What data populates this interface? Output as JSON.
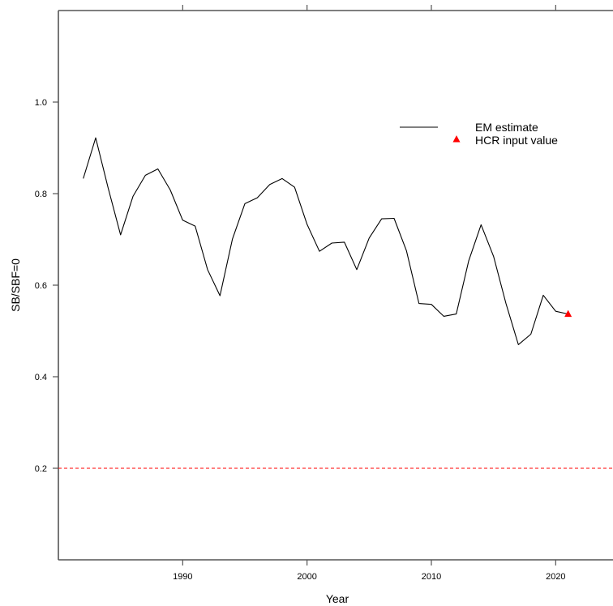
{
  "chart_data": {
    "type": "line",
    "xlabel": "Year",
    "ylabel": "SB/SBF=0",
    "xlim": [
      1980,
      2025
    ],
    "ylim": [
      0,
      1.2
    ],
    "x_ticks": [
      1990,
      2000,
      2010,
      2020
    ],
    "x_tick_labels": [
      "1990",
      "2000",
      "2010",
      "2020"
    ],
    "y_ticks": [
      0.2,
      0.4,
      0.6,
      0.8,
      1.0
    ],
    "y_tick_labels": [
      "0.2",
      "0.4",
      "0.6",
      "0.8",
      "1.0"
    ],
    "grid": false,
    "legend_position": "top-right",
    "series": [
      {
        "name": "EM estimate",
        "kind": "line",
        "color": "#000000",
        "x": [
          1982,
          1983,
          1984,
          1985,
          1986,
          1987,
          1988,
          1989,
          1990,
          1991,
          1992,
          1993,
          1994,
          1995,
          1996,
          1997,
          1998,
          1999,
          2000,
          2001,
          2002,
          2003,
          2004,
          2005,
          2006,
          2007,
          2008,
          2009,
          2010,
          2011,
          2012,
          2013,
          2014,
          2015,
          2016,
          2017,
          2018,
          2019,
          2020,
          2021
        ],
        "y": [
          0.833,
          0.922,
          0.813,
          0.71,
          0.794,
          0.84,
          0.854,
          0.808,
          0.742,
          0.729,
          0.634,
          0.577,
          0.701,
          0.778,
          0.791,
          0.82,
          0.833,
          0.814,
          0.733,
          0.674,
          0.692,
          0.694,
          0.634,
          0.703,
          0.745,
          0.746,
          0.675,
          0.56,
          0.558,
          0.532,
          0.537,
          0.653,
          0.732,
          0.663,
          0.56,
          0.47,
          0.493,
          0.578,
          0.543,
          0.537
        ]
      },
      {
        "name": "HCR input value",
        "kind": "point",
        "marker": "triangle",
        "color": "#ff0000",
        "x": [
          2021
        ],
        "y": [
          0.537
        ]
      }
    ],
    "reference_line": {
      "y": 0.2,
      "color": "#ff0000",
      "style": "dashed"
    }
  }
}
